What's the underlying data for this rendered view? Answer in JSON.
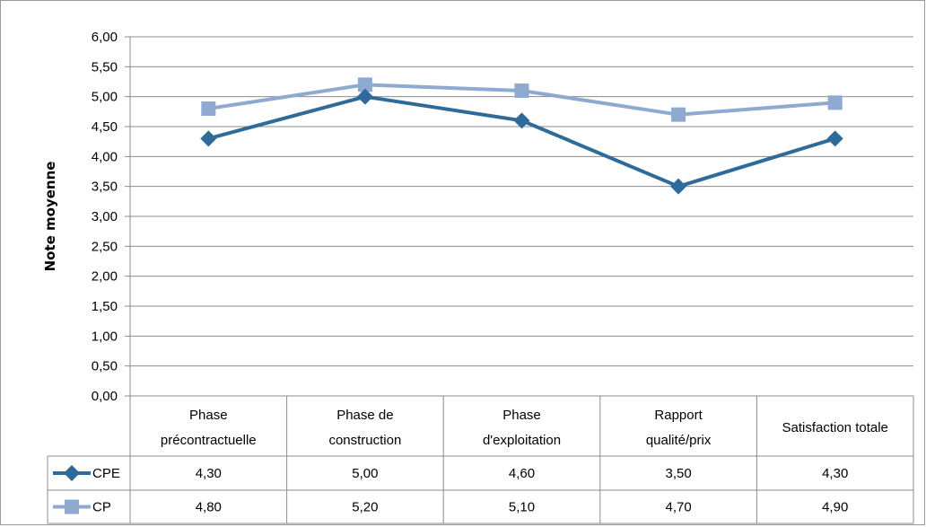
{
  "chart_data": {
    "type": "line",
    "ylabel": "Note moyenne",
    "xlabel": "",
    "title": "",
    "ylim": [
      0,
      6
    ],
    "ytick_step": 0.5,
    "yticks": [
      "0,00",
      "0,50",
      "1,00",
      "1,50",
      "2,00",
      "2,50",
      "3,00",
      "3,50",
      "4,00",
      "4,50",
      "5,00",
      "5,50",
      "6,00"
    ],
    "categories": [
      [
        "Phase",
        "précontractuelle"
      ],
      [
        "Phase de",
        "construction"
      ],
      [
        "Phase",
        "d'exploitation"
      ],
      [
        "Rapport",
        "qualité/prix"
      ],
      [
        "Satisfaction totale"
      ]
    ],
    "series": [
      {
        "name": "CPE",
        "values": [
          4.3,
          5.0,
          4.6,
          3.5,
          4.3
        ],
        "labels": [
          "4,30",
          "5,00",
          "4,60",
          "3,50",
          "4,30"
        ],
        "color": "#2e6a9a",
        "marker": "diamond"
      },
      {
        "name": "CP",
        "values": [
          4.8,
          5.2,
          5.1,
          4.7,
          4.9
        ],
        "labels": [
          "4,80",
          "5,20",
          "5,10",
          "4,70",
          "4,90"
        ],
        "color": "#8eaad0",
        "marker": "square"
      }
    ],
    "grid": true,
    "legend": "data-table"
  }
}
